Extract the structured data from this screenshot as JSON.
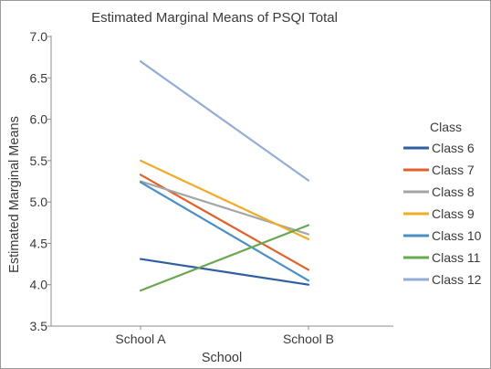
{
  "chart_data": {
    "type": "line",
    "title": "Estimated Marginal Means of PSQI Total",
    "xlabel": "School",
    "ylabel": "Estimated Marginal Means",
    "categories": [
      "School A",
      "School B"
    ],
    "ylim": [
      3.5,
      7.0
    ],
    "yticks": [
      "3.5",
      "4.0",
      "4.5",
      "5.0",
      "5.5",
      "6.0",
      "6.5",
      "7.0"
    ],
    "grid": false,
    "legend": {
      "title": "Class",
      "position": "right"
    },
    "series": [
      {
        "name": "Class 6",
        "values": [
          4.31,
          4.0
        ],
        "color": "#2e5fa3"
      },
      {
        "name": "Class 7",
        "values": [
          5.33,
          4.18
        ],
        "color": "#e0622a"
      },
      {
        "name": "Class 8",
        "values": [
          5.25,
          4.61
        ],
        "color": "#a5a5a5"
      },
      {
        "name": "Class 9",
        "values": [
          5.5,
          4.55
        ],
        "color": "#f0ac28"
      },
      {
        "name": "Class 10",
        "values": [
          5.24,
          4.05
        ],
        "color": "#4a8fc4"
      },
      {
        "name": "Class 11",
        "values": [
          3.93,
          4.72
        ],
        "color": "#6aa84f"
      },
      {
        "name": "Class 12",
        "values": [
          6.7,
          5.26
        ],
        "color": "#93add6"
      }
    ]
  }
}
